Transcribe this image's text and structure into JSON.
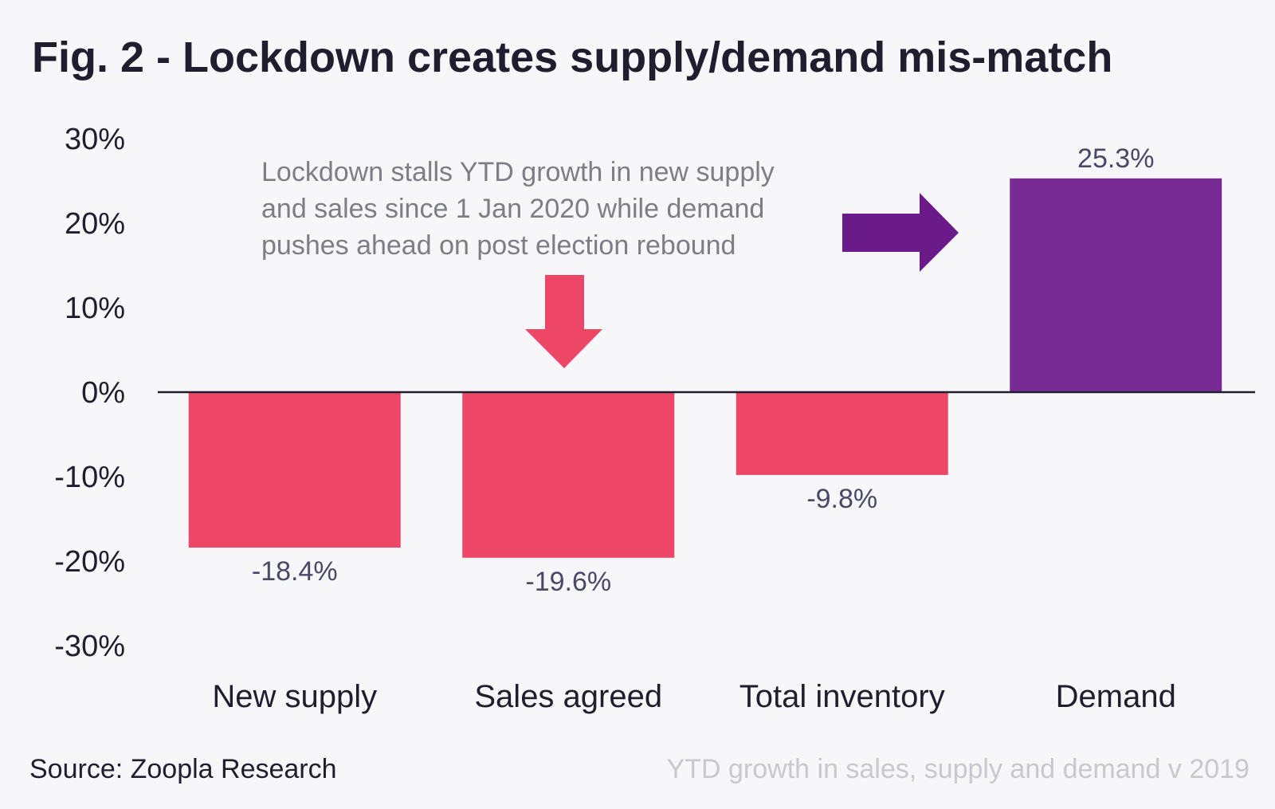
{
  "chart_data": {
    "type": "bar",
    "title": "Fig. 2 - Lockdown creates supply/demand mis-match",
    "categories": [
      "New supply",
      "Sales agreed",
      "Total inventory",
      "Demand"
    ],
    "values": [
      -18.4,
      -19.6,
      -9.8,
      25.3
    ],
    "value_labels": [
      "-18.4%",
      "-19.6%",
      "-9.8%",
      "25.3%"
    ],
    "ylim": [
      -30,
      30
    ],
    "yticks": [
      30,
      20,
      10,
      0,
      -10,
      -20,
      -30
    ],
    "ytick_labels": [
      "30%",
      "20%",
      "10%",
      "0%",
      "-10%",
      "-20%",
      "-30%"
    ],
    "grid": false,
    "legend": "none",
    "annotation": {
      "lines": [
        "Lockdown stalls YTD growth in new supply",
        "and sales since 1 Jan 2020 while demand",
        "pushes ahead on post election rebound"
      ]
    },
    "source": "Source: Zoopla Research",
    "subtitle": "YTD growth in sales, supply and demand v 2019",
    "colors": {
      "negative": "#ee4667",
      "positive": "#782b95",
      "arrow_down": "#ee4667",
      "arrow_right": "#6b1a8a",
      "axis": "#1f1d2e"
    }
  }
}
